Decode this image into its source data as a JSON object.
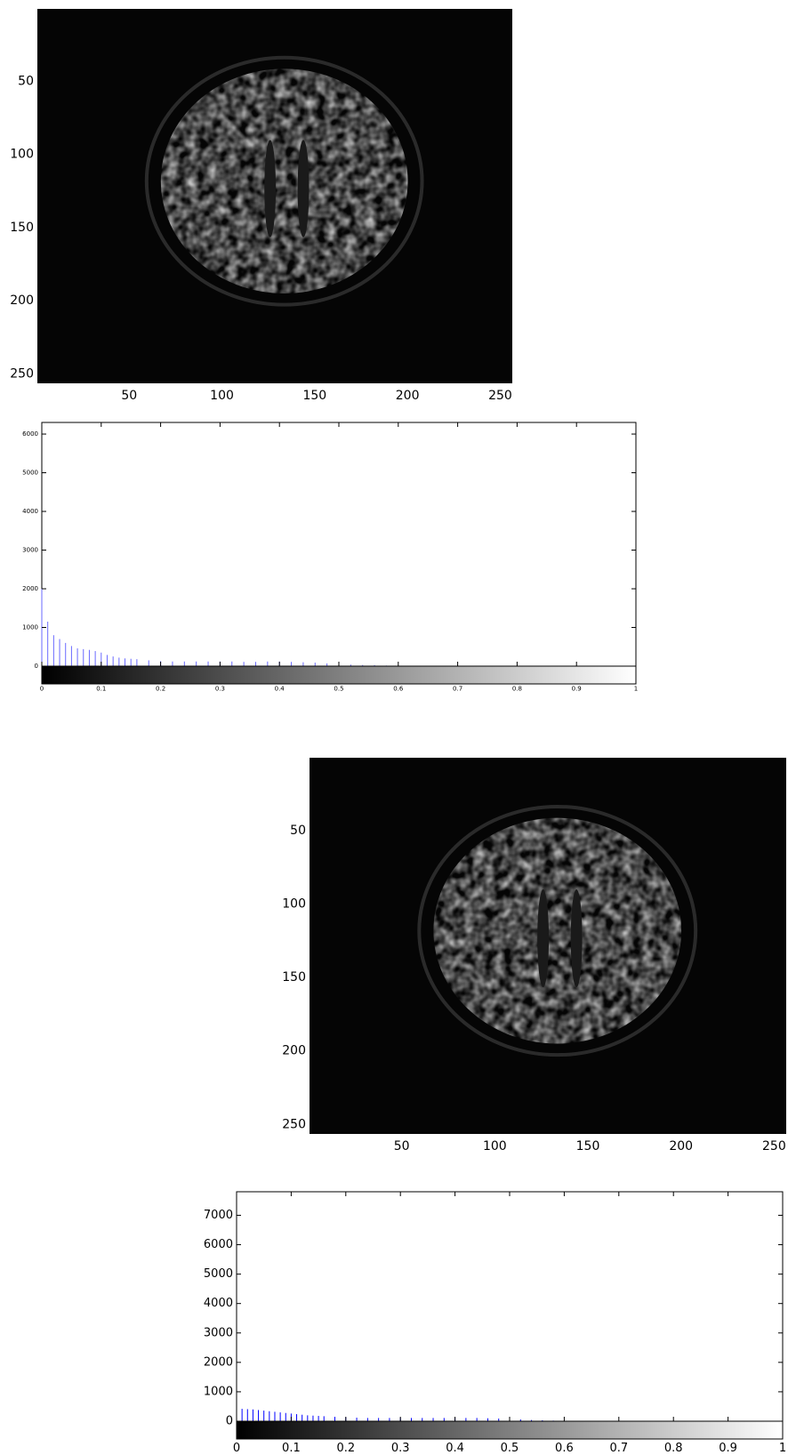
{
  "chart_data": [
    {
      "type": "image",
      "xlim": [
        0.5,
        256.5
      ],
      "ylim": [
        0.5,
        256.5
      ],
      "y_reversed": true,
      "xticks": [
        50,
        100,
        150,
        200,
        250
      ],
      "yticks": [
        50,
        100,
        150,
        200,
        250
      ]
    },
    {
      "type": "histogram",
      "color": "#6a6aff",
      "xlim": [
        0,
        1
      ],
      "ylim": [
        0,
        6300
      ],
      "xticks": [
        0,
        0.1,
        0.2,
        0.3,
        0.4,
        0.5,
        0.6,
        0.7,
        0.8,
        0.9,
        1
      ],
      "yticks": [
        0,
        1000,
        2000,
        3000,
        4000,
        5000,
        6000
      ],
      "x": [
        0,
        0.01,
        0.02,
        0.03,
        0.04,
        0.05,
        0.06,
        0.07,
        0.08,
        0.09,
        0.1,
        0.11,
        0.12,
        0.13,
        0.14,
        0.15,
        0.16,
        0.18,
        0.2,
        0.22,
        0.24,
        0.26,
        0.28,
        0.3,
        0.32,
        0.34,
        0.36,
        0.38,
        0.4,
        0.42,
        0.44,
        0.46,
        0.48,
        0.5,
        0.52,
        0.54,
        0.56,
        0.58,
        0.6,
        0.65,
        0.7,
        0.75,
        0.8,
        0.85,
        0.9,
        0.95
      ],
      "values": [
        2000,
        1150,
        800,
        700,
        600,
        520,
        460,
        440,
        420,
        390,
        350,
        290,
        250,
        220,
        200,
        190,
        180,
        150,
        130,
        120,
        120,
        120,
        120,
        120,
        120,
        110,
        110,
        120,
        120,
        110,
        100,
        90,
        70,
        60,
        40,
        30,
        25,
        15,
        10,
        6,
        4,
        3,
        3,
        2,
        2,
        2
      ]
    },
    {
      "type": "image",
      "xlim": [
        0.5,
        256.5
      ],
      "ylim": [
        0.5,
        256.5
      ],
      "y_reversed": true,
      "xticks": [
        50,
        100,
        150,
        200,
        250
      ],
      "yticks": [
        50,
        100,
        150,
        200,
        250
      ]
    },
    {
      "type": "histogram",
      "color": "#0000ff",
      "xlim": [
        0,
        1
      ],
      "ylim": [
        0,
        7800
      ],
      "xticks": [
        0,
        0.1,
        0.2,
        0.3,
        0.4,
        0.5,
        0.6,
        0.7,
        0.8,
        0.9,
        1
      ],
      "yticks": [
        0,
        1000,
        2000,
        3000,
        4000,
        5000,
        6000,
        7000
      ],
      "x": [
        0,
        0.01,
        0.02,
        0.03,
        0.04,
        0.05,
        0.06,
        0.07,
        0.08,
        0.09,
        0.1,
        0.11,
        0.12,
        0.13,
        0.14,
        0.15,
        0.16,
        0.18,
        0.2,
        0.22,
        0.24,
        0.26,
        0.28,
        0.3,
        0.32,
        0.34,
        0.36,
        0.38,
        0.4,
        0.42,
        0.44,
        0.46,
        0.48,
        0.5,
        0.52,
        0.54,
        0.56,
        0.58,
        0.6,
        0.65,
        0.7,
        0.75,
        0.8,
        0.85,
        0.9,
        0.95
      ],
      "values": [
        0,
        420,
        410,
        400,
        380,
        360,
        340,
        320,
        300,
        280,
        260,
        240,
        220,
        200,
        190,
        180,
        170,
        150,
        130,
        120,
        110,
        110,
        110,
        110,
        110,
        110,
        110,
        110,
        110,
        110,
        110,
        100,
        90,
        80,
        60,
        40,
        30,
        20,
        15,
        10,
        6,
        4,
        3,
        2,
        2,
        2
      ]
    }
  ]
}
